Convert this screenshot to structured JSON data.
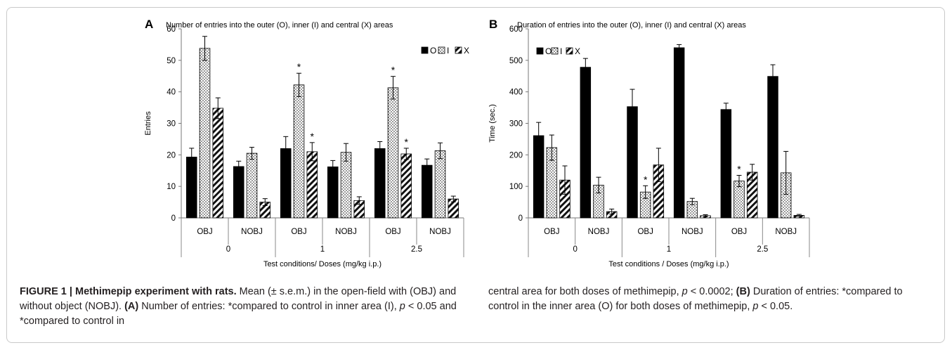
{
  "chart_data": [
    {
      "panel": "A",
      "type": "bar",
      "title": "Number of entries into the outer (O), inner (I) and central (X) areas",
      "ylabel": "Entries",
      "xlabel": "Test conditions/ Doses (mg/kg i.p.)",
      "ylim": [
        0,
        60
      ],
      "yticks": [
        "0",
        "10",
        "20",
        "30",
        "40",
        "50",
        "60"
      ],
      "categories": [
        "OBJ",
        "NOBJ",
        "OBJ",
        "NOBJ",
        "OBJ",
        "NOBJ"
      ],
      "groups": [
        "0",
        "1",
        "2.5"
      ],
      "series": [
        {
          "name": "O",
          "pattern": "solid",
          "values": [
            19.3,
            16.3,
            22.0,
            16.2,
            22.0,
            16.7
          ],
          "errors": [
            2.8,
            1.7,
            3.8,
            2.0,
            2.2,
            2.0
          ]
        },
        {
          "name": "I",
          "pattern": "dots",
          "values": [
            53.8,
            20.5,
            42.2,
            20.8,
            41.3,
            21.3
          ],
          "errors": [
            3.8,
            1.9,
            3.7,
            2.8,
            3.6,
            2.5
          ]
        },
        {
          "name": "X",
          "pattern": "hatch",
          "values": [
            34.8,
            5.0,
            21.0,
            5.5,
            20.3,
            6.0
          ],
          "errors": [
            3.3,
            1.1,
            2.9,
            1.2,
            1.8,
            0.9
          ]
        }
      ],
      "significance": [
        {
          "category_index": 2,
          "series": "I",
          "label": "*"
        },
        {
          "category_index": 2,
          "series": "X",
          "label": "*"
        },
        {
          "category_index": 4,
          "series": "I",
          "label": "*"
        },
        {
          "category_index": 4,
          "series": "X",
          "label": "*"
        }
      ],
      "legend_position": "top-right"
    },
    {
      "panel": "B",
      "type": "bar",
      "title": "Duration of entries into the outer (O), inner (I) and central (X) areas",
      "ylabel": "Time (sec.)",
      "xlabel": "Test conditions / Doses (mg/kg i.p.)",
      "ylim": [
        0,
        600
      ],
      "yticks": [
        "0",
        "100",
        "200",
        "300",
        "400",
        "500",
        "600"
      ],
      "categories": [
        "OBJ",
        "NOBJ",
        "OBJ",
        "NOBJ",
        "OBJ",
        "NOBJ"
      ],
      "groups": [
        "0",
        "1",
        "2.5"
      ],
      "series": [
        {
          "name": "O",
          "pattern": "solid",
          "values": [
            261,
            478,
            353,
            540,
            344,
            449
          ],
          "errors": [
            42,
            28,
            55,
            10,
            20,
            37
          ]
        },
        {
          "name": "I",
          "pattern": "dots",
          "values": [
            223,
            104,
            82,
            52,
            117,
            143
          ],
          "errors": [
            40,
            25,
            20,
            10,
            18,
            68
          ]
        },
        {
          "name": "X",
          "pattern": "hatch",
          "values": [
            120,
            20,
            168,
            7,
            145,
            8
          ],
          "errors": [
            45,
            8,
            53,
            3,
            25,
            3
          ]
        }
      ],
      "significance": [
        {
          "category_index": 2,
          "series": "I",
          "label": "*"
        },
        {
          "category_index": 4,
          "series": "I",
          "label": "*"
        }
      ],
      "legend_position": "top-left"
    }
  ],
  "caption": {
    "label": "FIGURE 1 | Methimepip experiment with rats.",
    "left_rest": "Mean (± s.e.m.) in the open-field with (OBJ) and without object (NOBJ).",
    "left_a_label": "(A)",
    "left_a_text": "Number of entries: *compared to control in inner area (I),",
    "left_p1_label": "p",
    "left_p1_text": "< 0.05 and *compared to control in",
    "right_text1": "central area for both doses of methimepip,",
    "right_p_label": "p",
    "right_p_text": "< 0.0002;",
    "right_b_label": "(B)",
    "right_b_text": "Duration of entries: *compared to control in the inner area (O) for both doses of methimepip,",
    "right_p2_label": "p",
    "right_p2_text": "< 0.05."
  }
}
